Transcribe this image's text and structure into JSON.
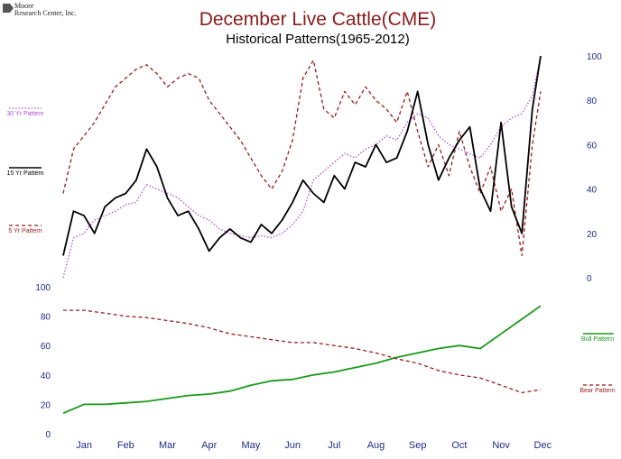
{
  "header": {
    "logo_line1": "Moore",
    "logo_line2": "Research Center, Inc.",
    "title": "December Live Cattle(CME)",
    "subtitle": "Historical Patterns(1965-2012)"
  },
  "colors": {
    "title": "#8b1a1a",
    "pattern30": "#b04fd0",
    "pattern15": "#000000",
    "pattern5": "#9b1c1c",
    "bull": "#1a9a1a",
    "bear": "#9b1c1c",
    "axis_text": "#1f2a8a"
  },
  "chart_data": [
    {
      "type": "line",
      "title": "Historical Patterns(1965-2012)",
      "x_categories": [
        "Jan",
        "Feb",
        "Mar",
        "Apr",
        "May",
        "Jun",
        "Jul",
        "Aug",
        "Sep",
        "Oct",
        "Nov",
        "Dec"
      ],
      "ylim": [
        0,
        100
      ],
      "y_ticks": [
        0,
        20,
        40,
        60,
        80,
        100
      ],
      "y_axis_side": "right",
      "legend_placement": "left",
      "series": [
        {
          "name": "30 Yr Pattern",
          "style": "dotted",
          "color": "#b04fd0",
          "x": [
            0,
            0.25,
            0.5,
            0.75,
            1,
            1.25,
            1.5,
            1.75,
            2,
            2.25,
            2.5,
            2.75,
            3,
            3.25,
            3.5,
            3.75,
            4,
            4.25,
            4.5,
            4.75,
            5,
            5.25,
            5.5,
            5.75,
            6,
            6.25,
            6.5,
            6.75,
            7,
            7.25,
            7.5,
            7.75,
            8,
            8.25,
            8.5,
            8.75,
            9,
            9.25,
            9.5,
            9.75,
            10,
            10.25,
            10.5,
            10.75,
            11,
            11.25,
            11.45
          ],
          "values": [
            0,
            18,
            20,
            26,
            28,
            30,
            33,
            34,
            42,
            40,
            38,
            36,
            32,
            28,
            26,
            22,
            20,
            19,
            18,
            19,
            18,
            20,
            24,
            30,
            44,
            48,
            52,
            56,
            54,
            58,
            60,
            64,
            62,
            70,
            74,
            72,
            64,
            60,
            58,
            56,
            54,
            60,
            68,
            72,
            74,
            82,
            100
          ]
        },
        {
          "name": "15 Yr Pattern",
          "style": "solid",
          "color": "#000000",
          "x": [
            0,
            0.25,
            0.5,
            0.75,
            1,
            1.25,
            1.5,
            1.75,
            2,
            2.25,
            2.5,
            2.75,
            3,
            3.25,
            3.5,
            3.75,
            4,
            4.25,
            4.5,
            4.75,
            5,
            5.25,
            5.5,
            5.75,
            6,
            6.25,
            6.5,
            6.75,
            7,
            7.25,
            7.5,
            7.75,
            8,
            8.25,
            8.5,
            8.75,
            9,
            9.25,
            9.5,
            9.75,
            10,
            10.25,
            10.5,
            10.75,
            11,
            11.25,
            11.45
          ],
          "values": [
            10,
            30,
            28,
            20,
            32,
            36,
            38,
            44,
            58,
            50,
            36,
            28,
            30,
            22,
            12,
            18,
            22,
            18,
            16,
            24,
            20,
            26,
            34,
            44,
            38,
            34,
            46,
            40,
            52,
            50,
            60,
            52,
            54,
            66,
            84,
            60,
            44,
            54,
            62,
            68,
            40,
            30,
            70,
            32,
            20,
            76,
            100
          ]
        },
        {
          "name": "5 Yr Pattern",
          "style": "dashed",
          "color": "#9b1c1c",
          "x": [
            0,
            0.25,
            0.5,
            0.75,
            1,
            1.25,
            1.5,
            1.75,
            2,
            2.25,
            2.5,
            2.75,
            3,
            3.25,
            3.5,
            3.75,
            4,
            4.25,
            4.5,
            4.75,
            5,
            5.25,
            5.5,
            5.75,
            6,
            6.25,
            6.5,
            6.75,
            7,
            7.25,
            7.5,
            7.75,
            8,
            8.25,
            8.5,
            8.75,
            9,
            9.25,
            9.5,
            9.75,
            10,
            10.25,
            10.5,
            10.75,
            11,
            11.25,
            11.45
          ],
          "values": [
            38,
            58,
            64,
            70,
            78,
            86,
            90,
            94,
            96,
            92,
            86,
            90,
            92,
            90,
            80,
            74,
            68,
            62,
            54,
            46,
            40,
            48,
            62,
            90,
            98,
            76,
            72,
            84,
            78,
            86,
            80,
            76,
            70,
            84,
            66,
            50,
            60,
            46,
            66,
            50,
            38,
            50,
            30,
            40,
            10,
            60,
            84
          ]
        }
      ]
    },
    {
      "type": "line",
      "x_categories": [
        "Jan",
        "Feb",
        "Mar",
        "Apr",
        "May",
        "Jun",
        "Jul",
        "Aug",
        "Sep",
        "Oct",
        "Nov",
        "Dec"
      ],
      "ylim": [
        0,
        100
      ],
      "y_ticks": [
        0,
        20,
        40,
        60,
        80,
        100
      ],
      "y_axis_side": "left",
      "legend_placement": "right",
      "series": [
        {
          "name": "Bull Pattern",
          "style": "solid",
          "color": "#1a9a1a",
          "x": [
            0,
            0.5,
            1,
            1.5,
            2,
            2.5,
            3,
            3.5,
            4,
            4.5,
            5,
            5.5,
            6,
            6.5,
            7,
            7.5,
            8,
            8.5,
            9,
            9.5,
            10,
            10.5,
            11,
            11.45
          ],
          "values": [
            14,
            20,
            20,
            21,
            22,
            24,
            26,
            27,
            29,
            33,
            36,
            37,
            40,
            42,
            45,
            48,
            52,
            55,
            58,
            60,
            58,
            68,
            78,
            87
          ]
        },
        {
          "name": "Bear Pattern",
          "style": "dashed",
          "color": "#9b1c1c",
          "x": [
            0,
            0.5,
            1,
            1.5,
            2,
            2.5,
            3,
            3.5,
            4,
            4.5,
            5,
            5.5,
            6,
            6.5,
            7,
            7.5,
            8,
            8.5,
            9,
            9.5,
            10,
            10.5,
            11,
            11.45
          ],
          "values": [
            84,
            84,
            82,
            80,
            79,
            77,
            75,
            72,
            68,
            66,
            64,
            62,
            62,
            60,
            58,
            55,
            51,
            48,
            43,
            40,
            38,
            33,
            28,
            30
          ]
        }
      ]
    }
  ]
}
